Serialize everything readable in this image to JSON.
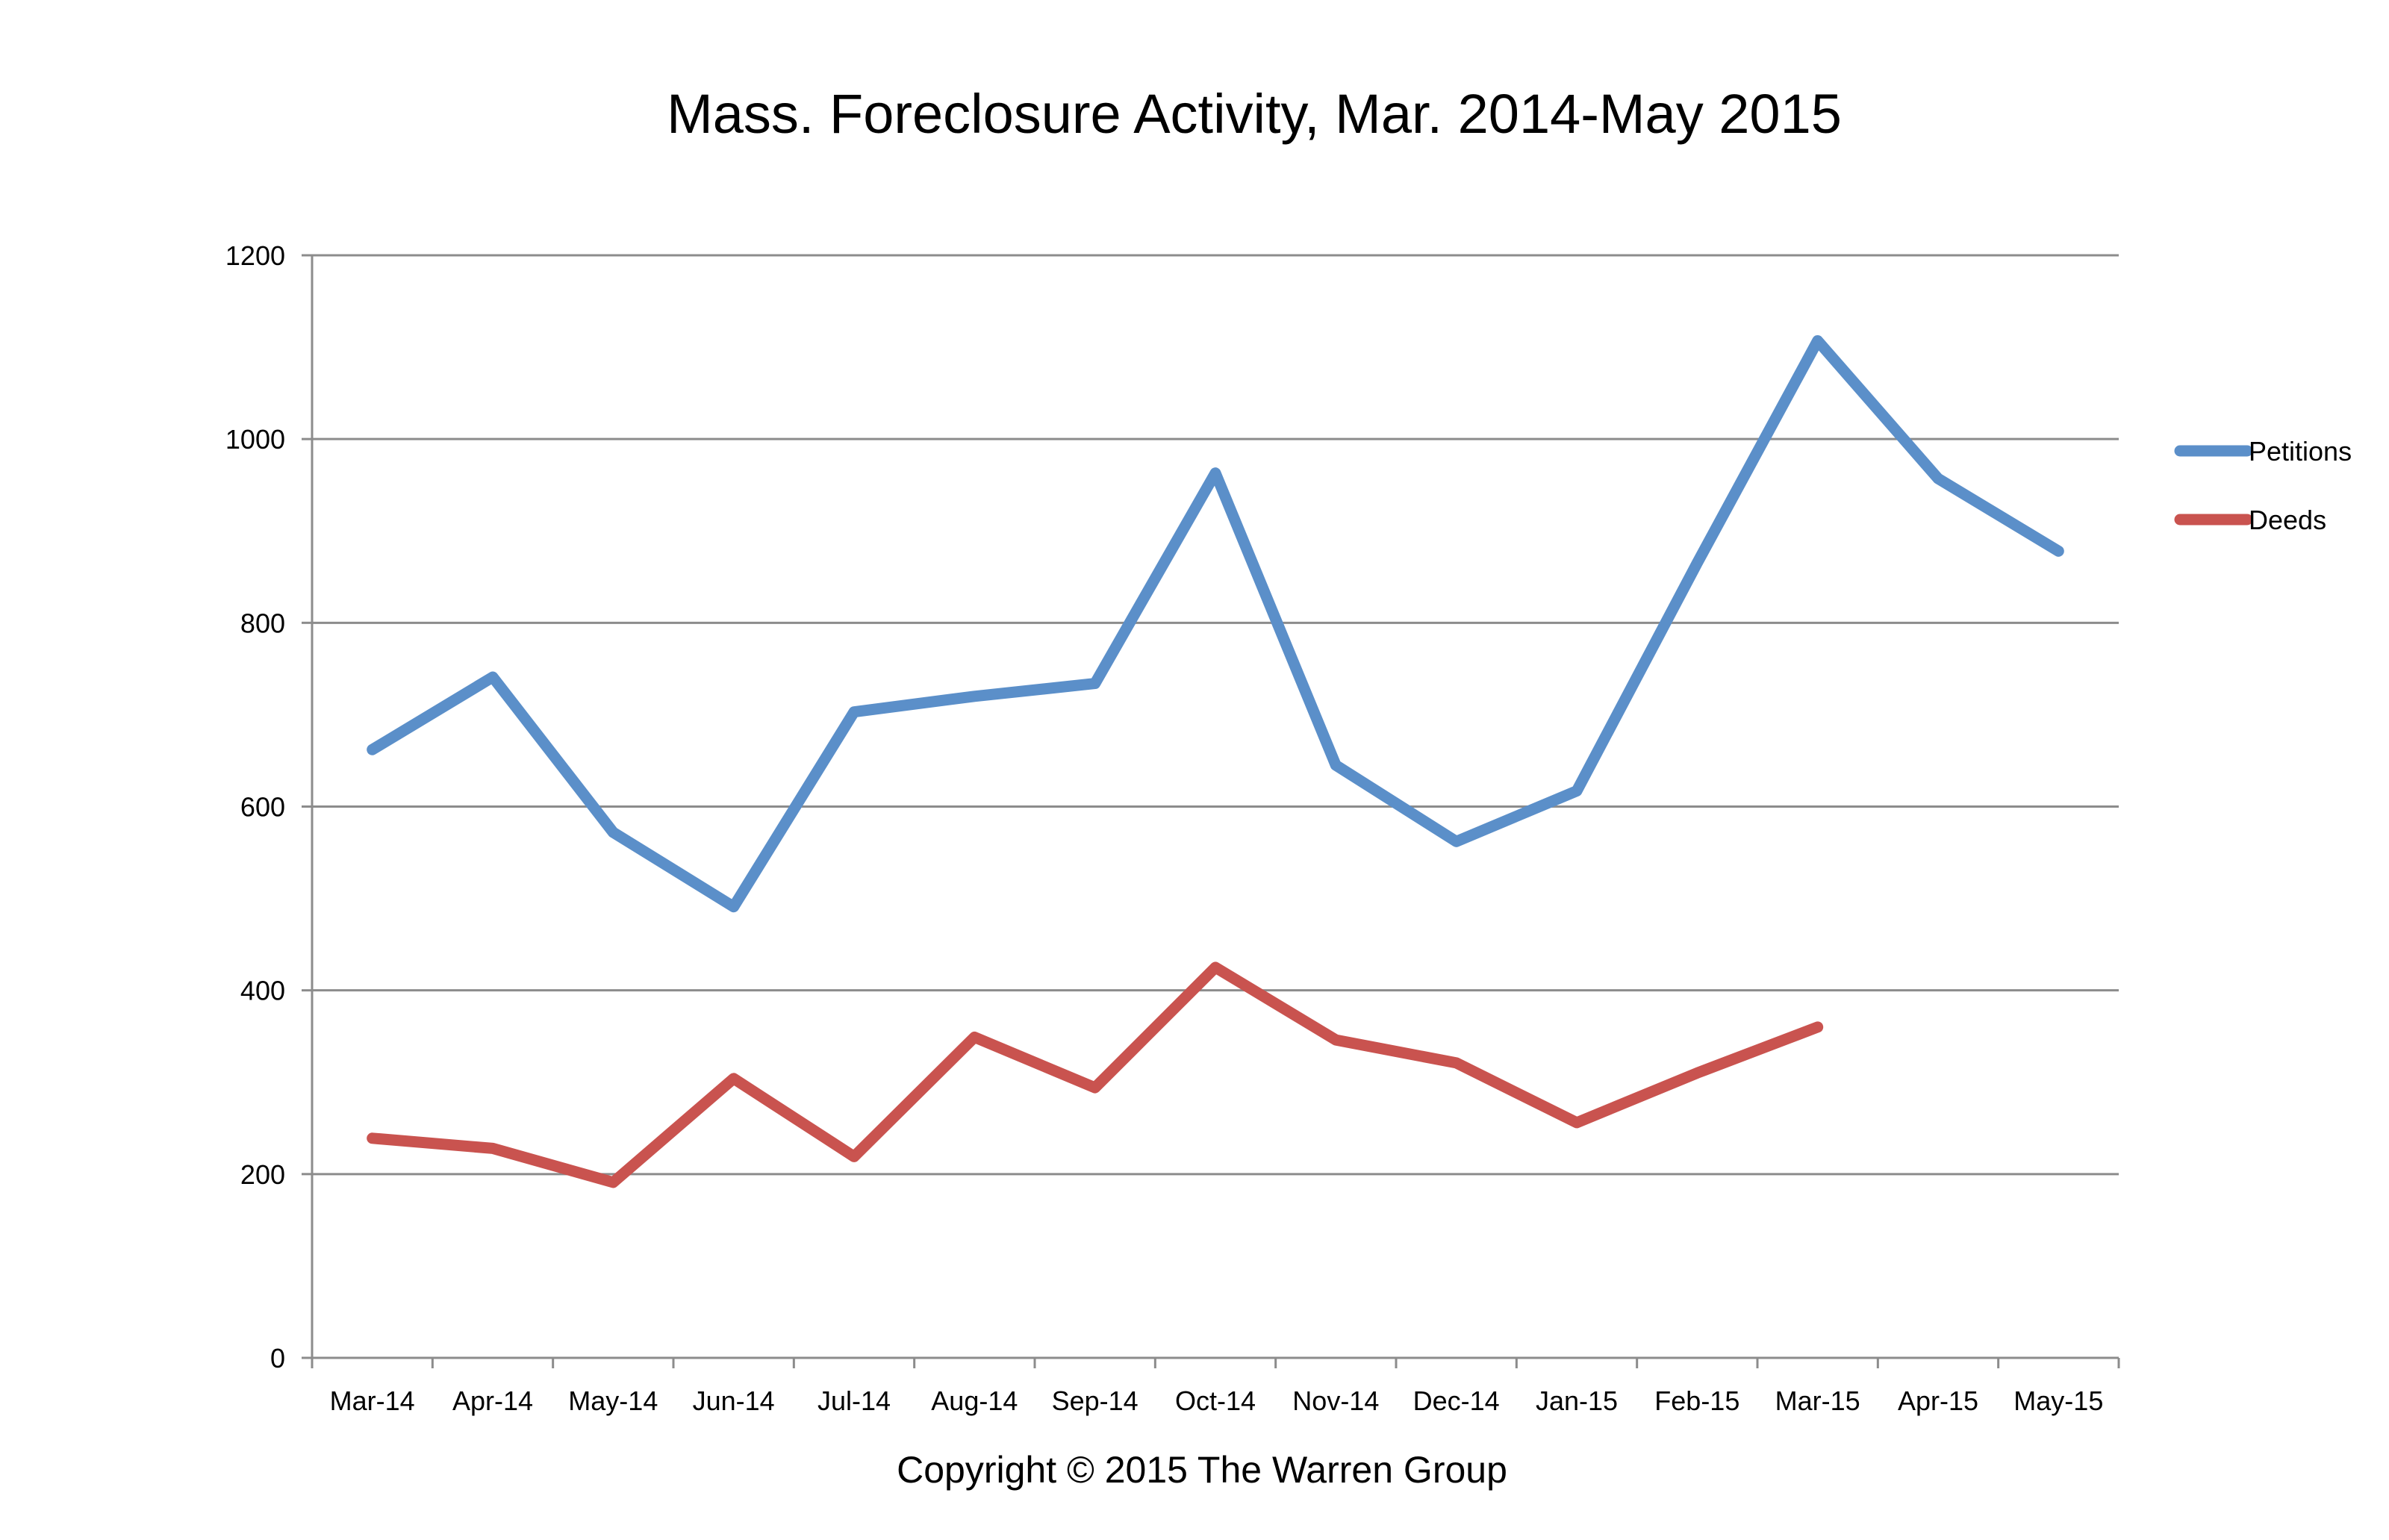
{
  "chart_data": {
    "type": "line",
    "title": "Mass. Foreclosure Activity, Mar. 2014-May 2015",
    "xlabel": "",
    "ylabel": "",
    "categories": [
      "Mar-14",
      "Apr-14",
      "May-14",
      "Jun-14",
      "Jul-14",
      "Aug-14",
      "Sep-14",
      "Oct-14",
      "Nov-14",
      "Dec-14",
      "Jan-15",
      "Feb-15",
      "Mar-15",
      "Apr-15",
      "May-15"
    ],
    "ylim": [
      0,
      1200
    ],
    "yticks": [
      0,
      200,
      400,
      600,
      800,
      1000,
      1200
    ],
    "ytick_labels": [
      "0",
      "200",
      "400",
      "600",
      "800",
      "1000",
      "1200"
    ],
    "grid": "horizontal",
    "legend_position": "right",
    "series": [
      {
        "name": "Petitions",
        "color": "#5B8FC9",
        "values": [
          662,
          741,
          572,
          491,
          703,
          720,
          734,
          963,
          645,
          562,
          617,
          865,
          1107,
          957,
          878
        ]
      },
      {
        "name": "Deeds",
        "color": "#C9534F",
        "values": [
          239,
          228,
          191,
          304,
          219,
          349,
          294,
          425,
          346,
          321,
          256,
          310,
          360,
          null,
          null
        ]
      }
    ]
  },
  "footer": {
    "copyright": "Copyright © 2015 The Warren Group"
  }
}
